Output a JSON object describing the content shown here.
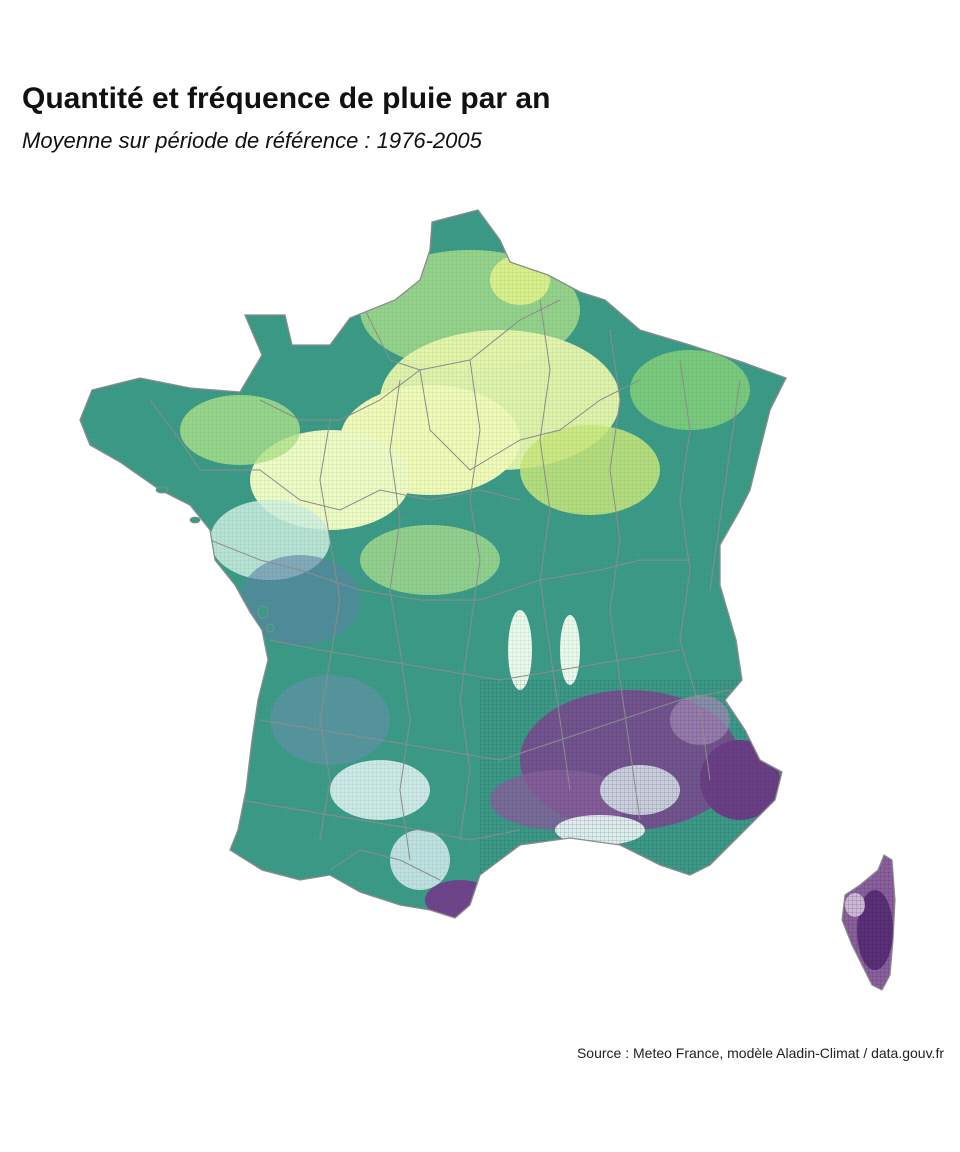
{
  "title": "Quantité et fréquence de pluie par an",
  "subtitle": "Moyenne sur période de référence : 1976-2005",
  "caption": "Source : Meteo France, modèle Aladin-Climat / data.gouv.fr",
  "palette": {
    "light": "#f1fbb8",
    "yellow_green": "#c9e87a",
    "mid_green": "#5fbf78",
    "teal": "#2f8f80",
    "blue_grey": "#5d83a8",
    "pale": "#ddf1ef",
    "purple": "#7a4b8f",
    "dark_purple": "#5a2f78",
    "border": "#8c8c8c"
  }
}
